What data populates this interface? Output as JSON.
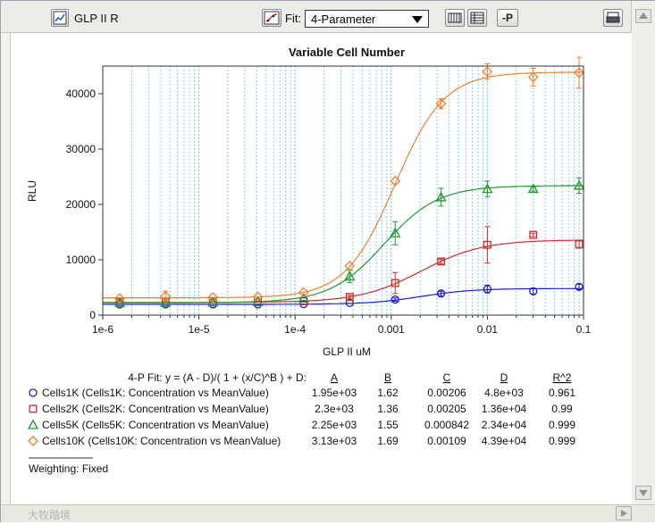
{
  "window": {
    "doc_label": "GLP II R",
    "fit_label": "Fit:",
    "fit_value": "4-Parameter",
    "p_button": "-P",
    "watermark": "大牧踏境"
  },
  "chart_data": {
    "type": "scatter",
    "title": "Variable Cell Number",
    "xlabel": "GLP II uM",
    "ylabel": "RLU",
    "x_scale": "log",
    "xlim": [
      1e-06,
      0.1
    ],
    "ylim": [
      0,
      45000
    ],
    "x_ticks": [
      1e-06,
      1e-05,
      0.0001,
      0.001,
      0.01,
      0.1
    ],
    "x_tick_labels": [
      "1e-6",
      "1e-5",
      "1e-4",
      "0.001",
      "0.01",
      "0.1"
    ],
    "y_ticks": [
      0,
      10000,
      20000,
      30000,
      40000
    ],
    "y_tick_labels": [
      "0",
      "10000",
      "20000",
      "30000",
      "40000"
    ],
    "grid": "vertical minor log gridlines, dotted",
    "x": [
      1.5e-06,
      4.5e-06,
      1.4e-05,
      4.1e-05,
      0.000123,
      0.00037,
      0.0011,
      0.0033,
      0.01,
      0.03,
      0.09
    ],
    "series": [
      {
        "name": "Cells1K (Cells1K: Concentration vs MeanValue)",
        "color": "#1a1adc",
        "marker": "circle",
        "values": [
          1950,
          1950,
          1950,
          1950,
          2000,
          2200,
          2800,
          3900,
          4700,
          4300,
          5100
        ],
        "errors": [
          0,
          0,
          0,
          0,
          0,
          0,
          300,
          400,
          700,
          500,
          500
        ],
        "fit": {
          "A": 1950,
          "B": 1.62,
          "C": 0.00206,
          "D": 4800
        }
      },
      {
        "name": "Cells2K (Cells2K: Concentration vs MeanValue)",
        "color": "#d42a2a",
        "marker": "square",
        "values": [
          2300,
          2300,
          2300,
          2350,
          2500,
          3300,
          5800,
          9700,
          12700,
          14500,
          12800
        ],
        "errors": [
          0,
          0,
          0,
          0,
          0,
          300,
          1900,
          400,
          3300,
          300,
          700
        ],
        "fit": {
          "A": 2300,
          "B": 1.36,
          "C": 0.00205,
          "D": 13600
        }
      },
      {
        "name": "Cells5K (Cells5K: Concentration vs MeanValue)",
        "color": "#1c9a2a",
        "marker": "triangle",
        "values": [
          2250,
          2250,
          2300,
          2400,
          3000,
          7000,
          14800,
          21300,
          22800,
          22800,
          23400
        ],
        "errors": [
          0,
          0,
          0,
          0,
          0,
          1100,
          2100,
          1600,
          1400,
          400,
          1400
        ],
        "fit": {
          "A": 2250,
          "B": 1.55,
          "C": 0.000842,
          "D": 23400
        }
      },
      {
        "name": "Cells10K (Cells10K: Concentration vs MeanValue)",
        "color": "#f07f2a",
        "marker": "diamond",
        "values": [
          3000,
          3400,
          3200,
          3300,
          4100,
          8900,
          24200,
          38200,
          44000,
          43000,
          43800
        ],
        "errors": [
          0,
          900,
          0,
          0,
          0,
          0,
          0,
          900,
          1400,
          1600,
          2800
        ],
        "fit": {
          "A": 3130,
          "B": 1.69,
          "C": 0.00109,
          "D": 43900
        }
      }
    ],
    "fit_table": {
      "equation": "4-P Fit: y = (A - D)/( 1 + (x/C)^B ) + D:",
      "headers": [
        "A",
        "B",
        "C",
        "D",
        "R^2"
      ],
      "rows": [
        [
          "1.95e+03",
          "1.62",
          "0.00206",
          "4.8e+03",
          "0.961"
        ],
        [
          "2.3e+03",
          "1.36",
          "0.00205",
          "1.36e+04",
          "0.99"
        ],
        [
          "2.25e+03",
          "1.55",
          "0.000842",
          "2.34e+04",
          "0.999"
        ],
        [
          "3.13e+03",
          "1.69",
          "0.00109",
          "4.39e+04",
          "0.999"
        ]
      ]
    },
    "weighting": "Weighting: Fixed"
  }
}
